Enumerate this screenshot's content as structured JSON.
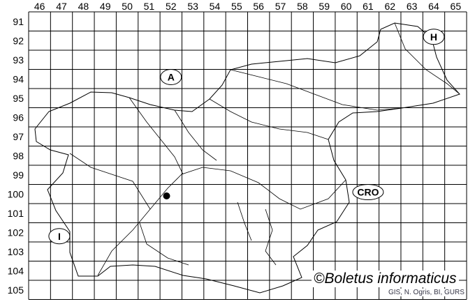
{
  "grid": {
    "columns": [
      "46",
      "47",
      "48",
      "49",
      "50",
      "51",
      "52",
      "53",
      "54",
      "55",
      "56",
      "57",
      "58",
      "59",
      "60",
      "61",
      "62",
      "63",
      "64",
      "65"
    ],
    "rows": [
      "91",
      "92",
      "93",
      "94",
      "95",
      "96",
      "97",
      "98",
      "99",
      "100",
      "101",
      "102",
      "103",
      "104",
      "105"
    ]
  },
  "country_markers": [
    {
      "label": "A",
      "col": 52.5,
      "row": 94.4
    },
    {
      "label": "H",
      "col": 64.5,
      "row": 92.3
    },
    {
      "label": "CRO",
      "col": 61.5,
      "row": 100.4
    },
    {
      "label": "I",
      "col": 47.4,
      "row": 102.7
    }
  ],
  "record": {
    "col": 52.3,
    "row": 100.6
  },
  "copyright": "©Boletus informaticus",
  "credit": "GIS, N. Ogris, BI, GURS"
}
